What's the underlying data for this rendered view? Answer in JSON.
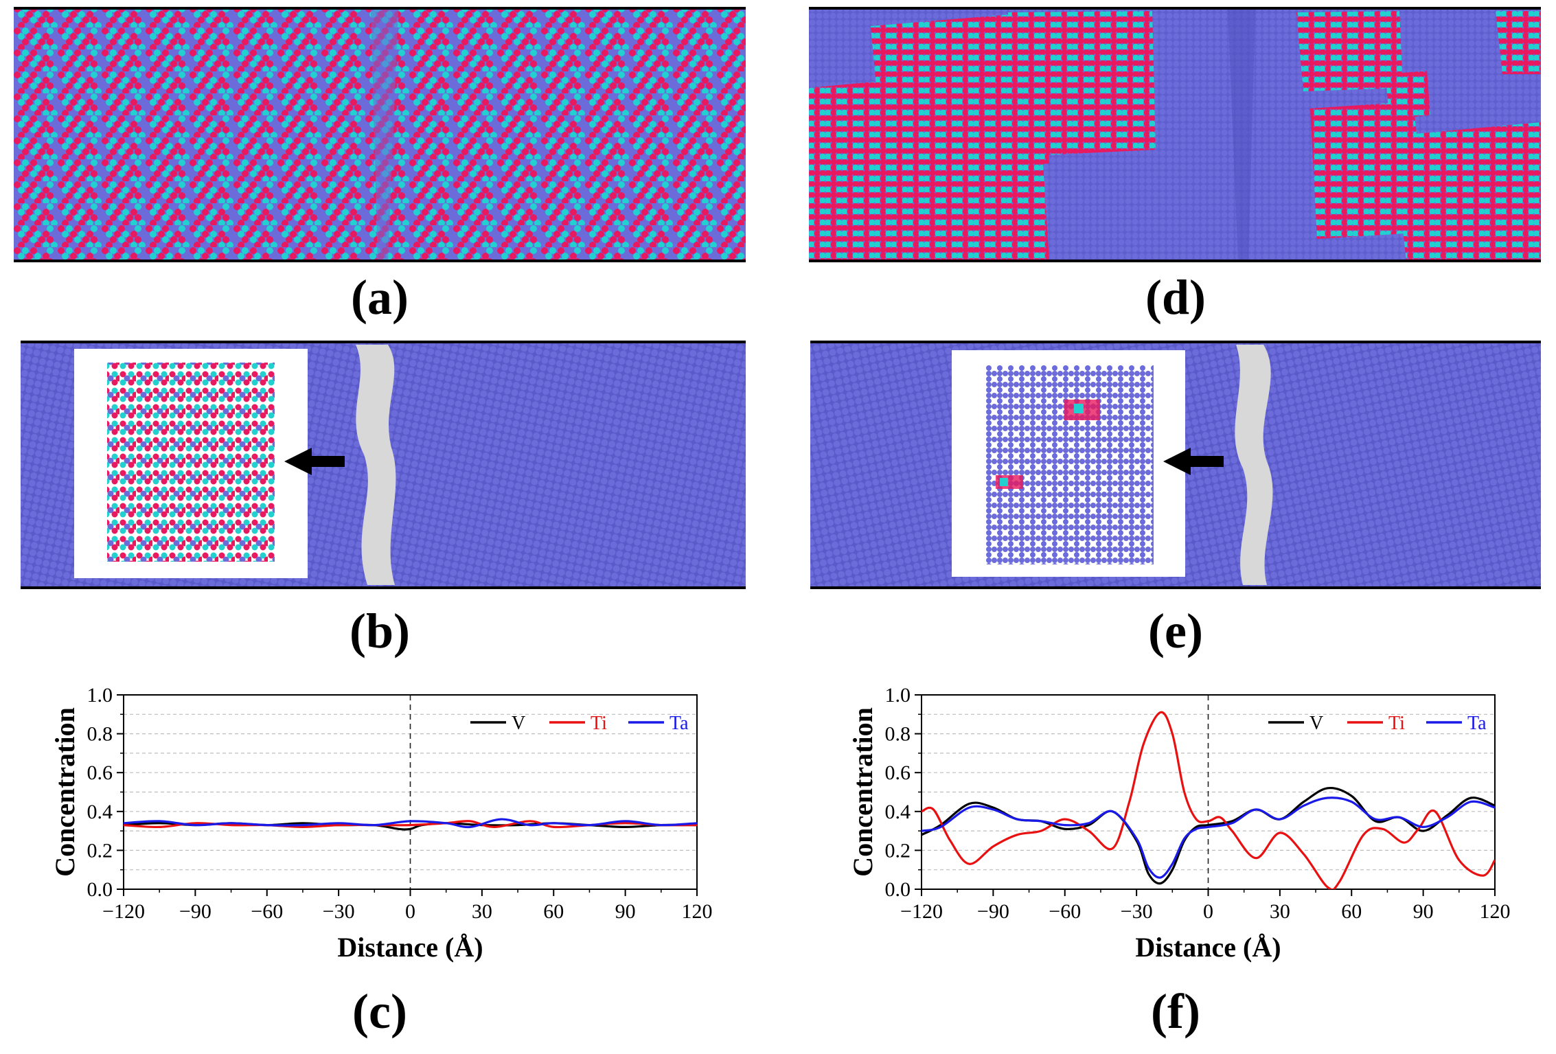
{
  "figure": {
    "colors": {
      "V": "#6b6bd9",
      "Ti": "#e8195e",
      "Ta": "#22d0d0",
      "grain_boundary": "#d8d8d8",
      "line_V": "#000000",
      "line_Ti": "#e81010",
      "line_Ta": "#1a1ae8"
    },
    "panel_labels": {
      "a": "(a)",
      "b": "(b)",
      "c": "(c)",
      "d": "(d)",
      "e": "(e)",
      "f": "(f)"
    },
    "snapshots": {
      "a": {
        "description_icon": "atom-snapshot-random-mixture"
      },
      "b": {
        "description_icon": "atom-snapshot-bcc-v-with-gb-inset"
      },
      "d": {
        "description_icon": "atom-snapshot-ordered-domains"
      },
      "e": {
        "description_icon": "atom-snapshot-bcc-v-with-gb-inset"
      }
    }
  },
  "chart_data": [
    {
      "id": "c",
      "type": "line",
      "xlabel": "Distance (Å)",
      "ylabel": "Concentration",
      "xlim": [
        -120,
        120
      ],
      "ylim": [
        0,
        1.0
      ],
      "xticks": [
        "−120",
        "−90",
        "−60",
        "−30",
        "0",
        "30",
        "60",
        "90",
        "120"
      ],
      "yticks": [
        "0.0",
        "0.2",
        "0.4",
        "0.6",
        "0.8",
        "1.0"
      ],
      "legend": [
        "V",
        "Ti",
        "Ta"
      ],
      "series": [
        {
          "name": "V",
          "x": [
            -120,
            -105,
            -90,
            -75,
            -60,
            -45,
            -30,
            -15,
            -5,
            0,
            5,
            15,
            30,
            45,
            60,
            75,
            90,
            105,
            120
          ],
          "y": [
            0.33,
            0.34,
            0.33,
            0.34,
            0.33,
            0.34,
            0.33,
            0.33,
            0.31,
            0.31,
            0.33,
            0.34,
            0.33,
            0.33,
            0.34,
            0.33,
            0.32,
            0.33,
            0.33
          ]
        },
        {
          "name": "Ti",
          "x": [
            -120,
            -105,
            -90,
            -75,
            -60,
            -45,
            -30,
            -15,
            0,
            15,
            25,
            35,
            50,
            60,
            75,
            90,
            105,
            120
          ],
          "y": [
            0.33,
            0.32,
            0.34,
            0.33,
            0.33,
            0.32,
            0.33,
            0.33,
            0.33,
            0.34,
            0.35,
            0.32,
            0.35,
            0.32,
            0.33,
            0.34,
            0.33,
            0.33
          ]
        },
        {
          "name": "Ta",
          "x": [
            -120,
            -105,
            -90,
            -75,
            -60,
            -45,
            -30,
            -15,
            0,
            15,
            25,
            38,
            50,
            60,
            75,
            90,
            105,
            120
          ],
          "y": [
            0.34,
            0.35,
            0.33,
            0.34,
            0.33,
            0.33,
            0.34,
            0.33,
            0.35,
            0.34,
            0.32,
            0.36,
            0.33,
            0.34,
            0.33,
            0.35,
            0.33,
            0.34
          ]
        }
      ]
    },
    {
      "id": "f",
      "type": "line",
      "xlabel": "Distance (Å)",
      "ylabel": "Concentration",
      "xlim": [
        -120,
        120
      ],
      "ylim": [
        0,
        1.0
      ],
      "xticks": [
        "−120",
        "−90",
        "−60",
        "−30",
        "0",
        "30",
        "60",
        "90",
        "120"
      ],
      "yticks": [
        "0.0",
        "0.2",
        "0.4",
        "0.6",
        "0.8",
        "1.0"
      ],
      "legend": [
        "V",
        "Ti",
        "Ta"
      ],
      "series": [
        {
          "name": "V",
          "x": [
            -120,
            -112,
            -100,
            -90,
            -80,
            -70,
            -60,
            -50,
            -40,
            -30,
            -25,
            -20,
            -15,
            -10,
            -5,
            0,
            10,
            20,
            30,
            40,
            50,
            60,
            70,
            80,
            90,
            100,
            110,
            120
          ],
          "y": [
            0.28,
            0.33,
            0.44,
            0.42,
            0.36,
            0.35,
            0.31,
            0.33,
            0.4,
            0.25,
            0.08,
            0.03,
            0.1,
            0.25,
            0.32,
            0.33,
            0.35,
            0.41,
            0.36,
            0.45,
            0.52,
            0.48,
            0.35,
            0.37,
            0.3,
            0.38,
            0.47,
            0.43
          ]
        },
        {
          "name": "Ti",
          "x": [
            -120,
            -115,
            -108,
            -100,
            -90,
            -80,
            -70,
            -60,
            -50,
            -40,
            -33,
            -27,
            -20,
            -15,
            -10,
            -5,
            0,
            5,
            10,
            20,
            30,
            40,
            50,
            55,
            65,
            73,
            82,
            88,
            95,
            105,
            115,
            120
          ],
          "y": [
            0.4,
            0.41,
            0.25,
            0.13,
            0.22,
            0.28,
            0.3,
            0.36,
            0.3,
            0.21,
            0.45,
            0.75,
            0.91,
            0.8,
            0.5,
            0.36,
            0.35,
            0.37,
            0.3,
            0.16,
            0.29,
            0.18,
            0.01,
            0.04,
            0.28,
            0.31,
            0.24,
            0.31,
            0.4,
            0.15,
            0.07,
            0.15
          ]
        },
        {
          "name": "Ta",
          "x": [
            -120,
            -112,
            -100,
            -90,
            -80,
            -70,
            -60,
            -50,
            -40,
            -30,
            -25,
            -20,
            -15,
            -10,
            -5,
            0,
            10,
            20,
            30,
            40,
            50,
            60,
            70,
            80,
            90,
            100,
            110,
            120
          ],
          "y": [
            0.3,
            0.32,
            0.42,
            0.41,
            0.36,
            0.35,
            0.33,
            0.34,
            0.4,
            0.26,
            0.11,
            0.06,
            0.13,
            0.26,
            0.31,
            0.32,
            0.34,
            0.41,
            0.36,
            0.43,
            0.47,
            0.45,
            0.36,
            0.37,
            0.32,
            0.37,
            0.45,
            0.42
          ]
        }
      ]
    }
  ]
}
